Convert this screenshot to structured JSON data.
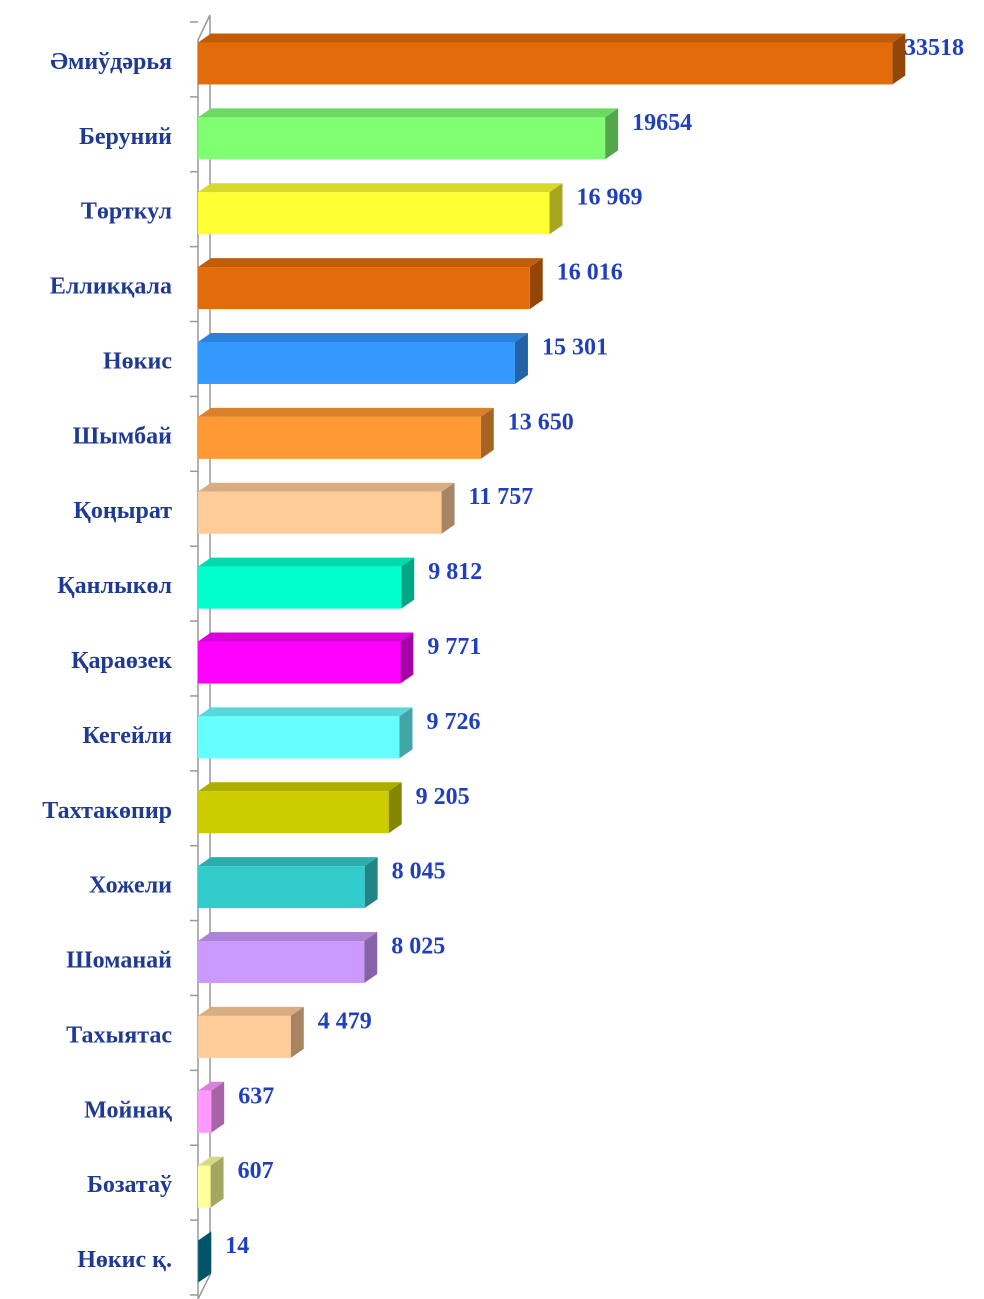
{
  "chart_data": {
    "type": "bar",
    "orientation": "horizontal",
    "categories": [
      "Әмиўдәрья",
      "Беруний",
      "Төрткул",
      "Елликқала",
      "Нөкис",
      "Шымбай",
      "Қоңырат",
      "Қанлыкөл",
      "Қараөзек",
      "Кегейли",
      "Тахтакөпир",
      "Хожели",
      "Шоманай",
      "Тахыятас",
      "Мойнақ",
      "Бозатаў",
      "Нөкис қ."
    ],
    "values": [
      33518,
      19654,
      16969,
      16016,
      15301,
      13650,
      11757,
      9812,
      9771,
      9726,
      9205,
      8045,
      8025,
      4479,
      637,
      607,
      14
    ],
    "value_labels": [
      "33518",
      "19654",
      "16 969",
      "16 016",
      "15 301",
      "13 650",
      "11 757",
      "9 812",
      "9 771",
      "9 726",
      "9 205",
      "8 045",
      "8 025",
      "4 479",
      "637",
      "607",
      "14"
    ],
    "colors": [
      "#e36c0a",
      "#80ff73",
      "#ffff33",
      "#e36c0a",
      "#3399ff",
      "#ff9933",
      "#ffcc99",
      "#00ffcc",
      "#ff00ff",
      "#66ffff",
      "#cccc00",
      "#33cccc",
      "#cc99ff",
      "#ffcc99",
      "#ff99ff",
      "#ffff99",
      "#0080a0"
    ],
    "xlim": [
      0,
      35000
    ]
  }
}
